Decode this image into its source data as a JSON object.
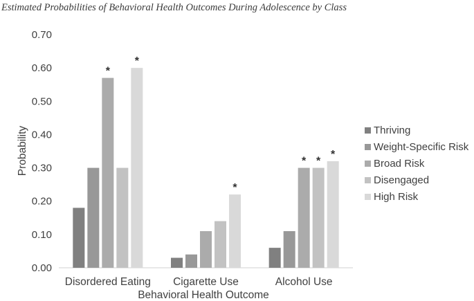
{
  "chart_data": {
    "type": "bar",
    "title": "Estimated Probabilities of Behavioral Health Outcomes During Adolescence by Class",
    "xlabel": "Behavioral Health Outcome",
    "ylabel": "Probability",
    "ylim": [
      0,
      0.7
    ],
    "yticks": [
      "0.00",
      "0.10",
      "0.20",
      "0.30",
      "0.40",
      "0.50",
      "0.60",
      "0.70"
    ],
    "categories": [
      "Disordered Eating",
      "Cigarette Use",
      "Alcohol Use"
    ],
    "series": [
      {
        "name": "Thriving",
        "color": "#808080",
        "values": [
          0.18,
          0.03,
          0.06
        ],
        "significant": [
          false,
          false,
          false
        ]
      },
      {
        "name": "Weight-Specific Risk",
        "color": "#989898",
        "values": [
          0.3,
          0.04,
          0.11
        ],
        "significant": [
          false,
          false,
          false
        ]
      },
      {
        "name": "Broad Risk",
        "color": "#ababab",
        "values": [
          0.57,
          0.11,
          0.3
        ],
        "significant": [
          true,
          false,
          true
        ]
      },
      {
        "name": "Disengaged",
        "color": "#c2c2c2",
        "values": [
          0.3,
          0.14,
          0.3
        ],
        "significant": [
          false,
          false,
          true
        ]
      },
      {
        "name": "High Risk",
        "color": "#d9d9d9",
        "values": [
          0.6,
          0.22,
          0.32
        ],
        "significant": [
          true,
          true,
          true
        ]
      }
    ],
    "significance_marker": "*",
    "legend_position": "right",
    "grid": false
  }
}
